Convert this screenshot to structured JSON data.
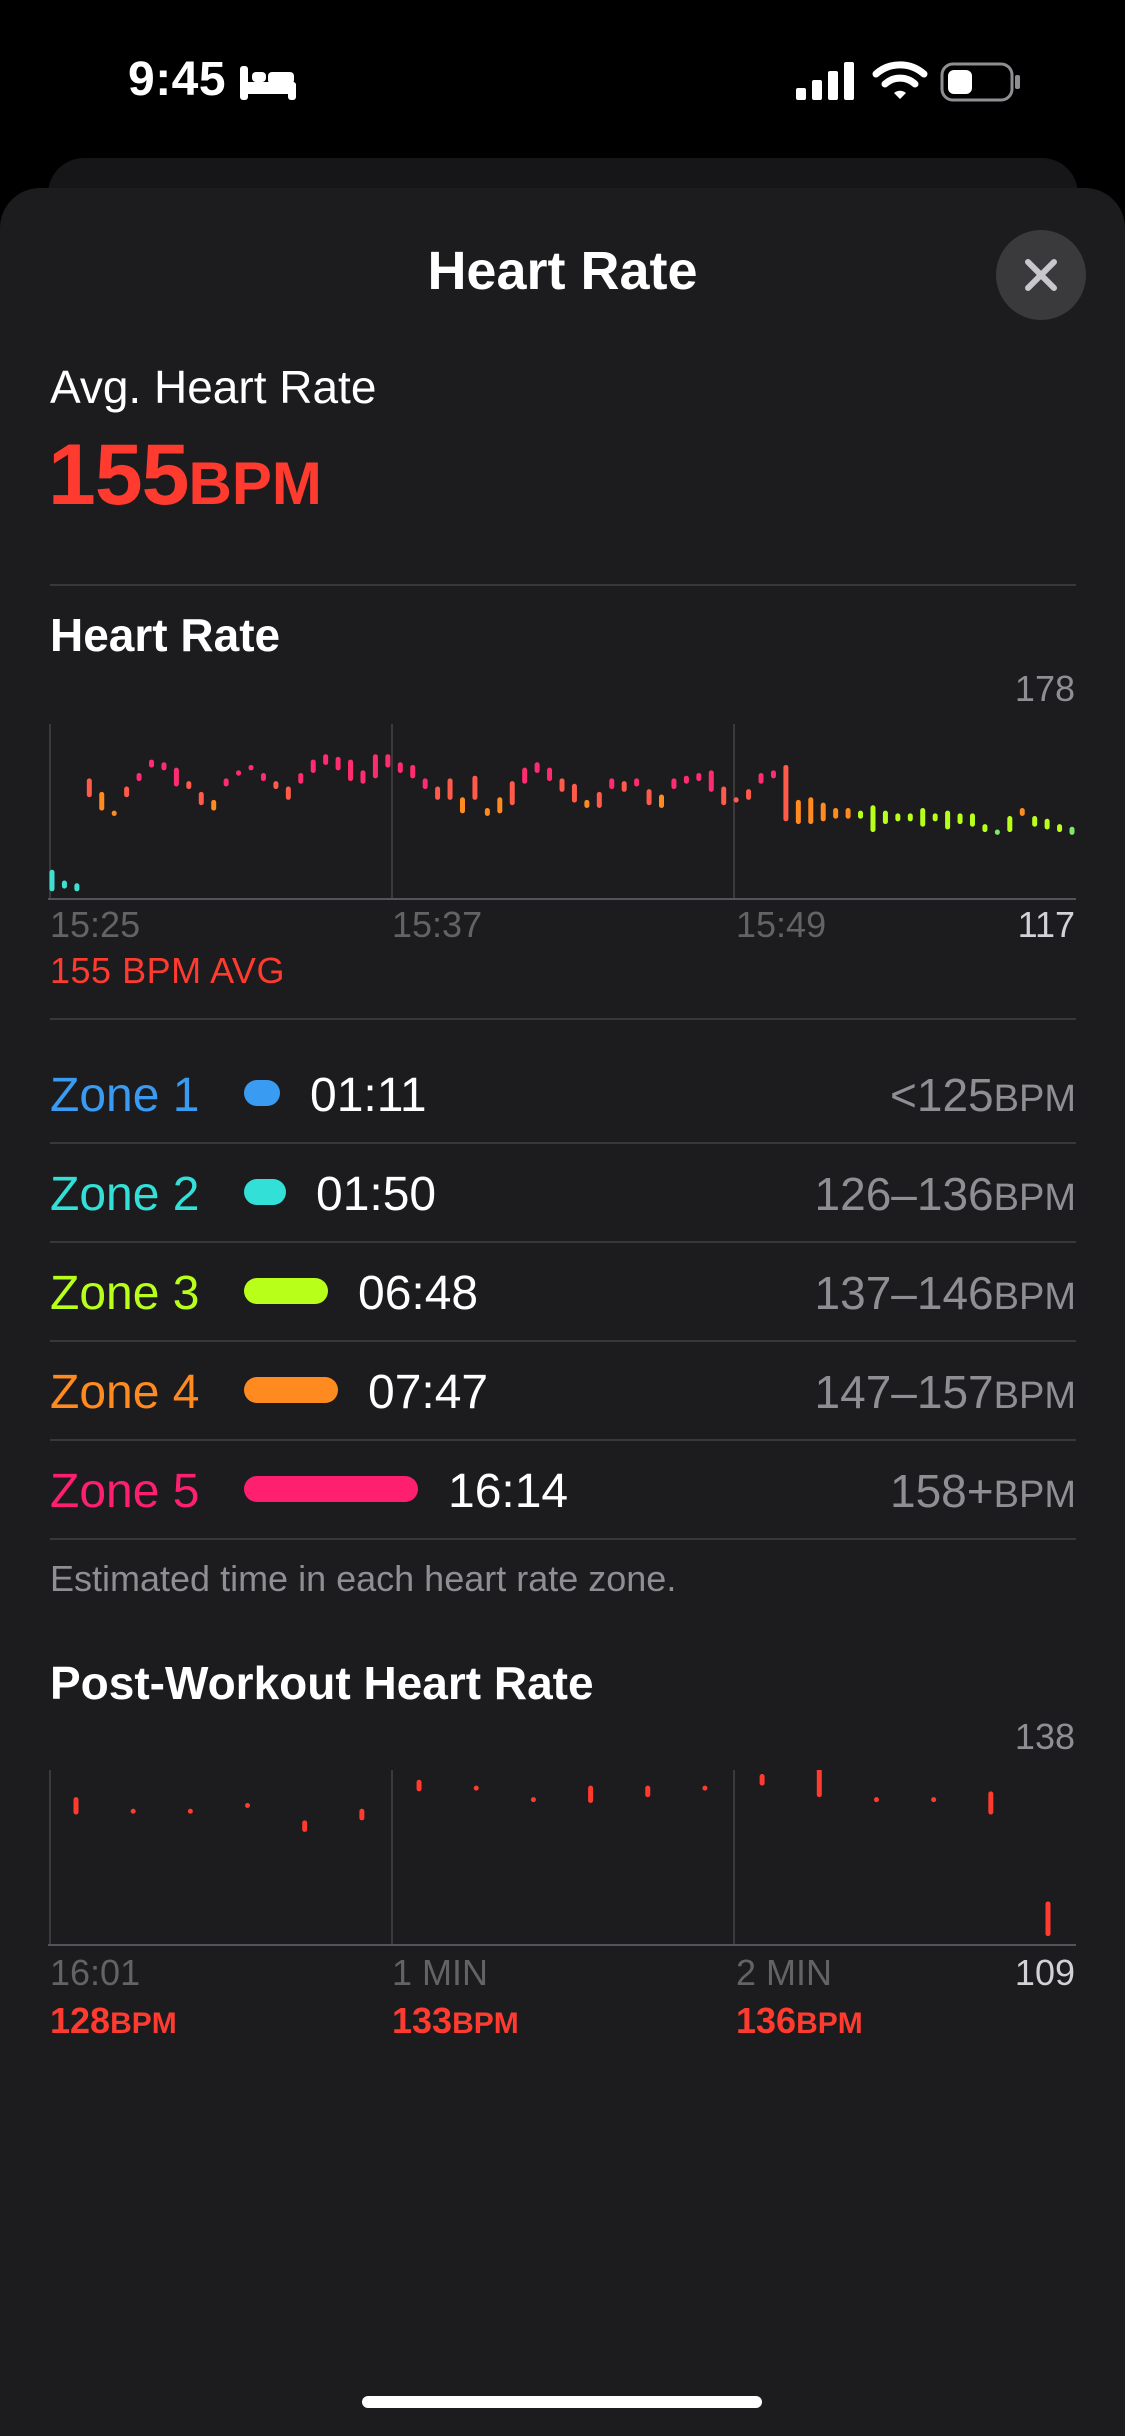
{
  "status_bar": {
    "time": "9:45",
    "icons": [
      "bed-icon",
      "cellular-signal-icon",
      "wifi-icon",
      "battery-icon"
    ]
  },
  "sheet": {
    "title": "Heart Rate",
    "close_icon": "close-icon"
  },
  "summary": {
    "label": "Avg. Heart Rate",
    "value": "155",
    "unit": "BPM",
    "color": "#ff3b30"
  },
  "heart_rate_chart": {
    "title": "Heart Rate",
    "y_max_label": "178",
    "y_min_label": "117",
    "x_labels": [
      "15:25",
      "15:37",
      "15:49"
    ],
    "avg_caption": "155 BPM AVG"
  },
  "zones": [
    {
      "name": "Zone 1",
      "time": "01:11",
      "range": "<125",
      "unit": "BPM",
      "color": "#3a9bf3"
    },
    {
      "name": "Zone 2",
      "time": "01:50",
      "range": "126–136",
      "unit": "BPM",
      "color": "#33e0d8"
    },
    {
      "name": "Zone 3",
      "time": "06:48",
      "range": "137–146",
      "unit": "BPM",
      "color": "#b8ff1a"
    },
    {
      "name": "Zone 4",
      "time": "07:47",
      "range": "147–157",
      "unit": "BPM",
      "color": "#ff8a1f"
    },
    {
      "name": "Zone 5",
      "time": "16:14",
      "range": "158+",
      "unit": "BPM",
      "color": "#ff1f6f"
    }
  ],
  "zone_note": "Estimated time in each heart rate zone.",
  "post_workout": {
    "title": "Post-Workout Heart Rate",
    "y_max_label": "138",
    "y_min_label": "109",
    "x_labels": [
      "16:01",
      "1 MIN",
      "2 MIN"
    ],
    "values": [
      {
        "value": "128",
        "unit": "BPM"
      },
      {
        "value": "133",
        "unit": "BPM"
      },
      {
        "value": "136",
        "unit": "BPM"
      }
    ]
  },
  "chart_data": [
    {
      "type": "range-bar",
      "title": "Heart Rate",
      "ylim": [
        117,
        178
      ],
      "x_start": "15:25",
      "x_ticks": [
        "15:25",
        "15:37",
        "15:49"
      ],
      "avg_bpm": 155,
      "series": [
        {
          "range": [
            118,
            126
          ]
        },
        {
          "range": [
            119,
            122
          ]
        },
        {
          "range": [
            118,
            121
          ]
        },
        {
          "range": [
            153,
            160
          ]
        },
        {
          "range": [
            148,
            155
          ]
        },
        {
          "range": [
            146,
            148
          ]
        },
        {
          "range": [
            153,
            157
          ]
        },
        {
          "range": [
            159,
            162
          ]
        },
        {
          "range": [
            164,
            167
          ]
        },
        {
          "range": [
            163,
            166
          ]
        },
        {
          "range": [
            157,
            164
          ]
        },
        {
          "range": [
            156,
            159
          ]
        },
        {
          "range": [
            150,
            155
          ]
        },
        {
          "range": [
            148,
            152
          ]
        },
        {
          "range": [
            157,
            160
          ]
        },
        {
          "range": [
            161,
            163
          ]
        },
        {
          "range": [
            163,
            165
          ]
        },
        {
          "range": [
            159,
            162
          ]
        },
        {
          "range": [
            156,
            159
          ]
        },
        {
          "range": [
            152,
            157
          ]
        },
        {
          "range": [
            158,
            162
          ]
        },
        {
          "range": [
            162,
            167
          ]
        },
        {
          "range": [
            165,
            169
          ]
        },
        {
          "range": [
            163,
            168
          ]
        },
        {
          "range": [
            159,
            167
          ]
        },
        {
          "range": [
            158,
            163
          ]
        },
        {
          "range": [
            160,
            169
          ]
        },
        {
          "range": [
            164,
            169
          ]
        },
        {
          "range": [
            162,
            166
          ]
        },
        {
          "range": [
            160,
            165
          ]
        },
        {
          "range": [
            156,
            160
          ]
        },
        {
          "range": [
            152,
            157
          ]
        },
        {
          "range": [
            152,
            160
          ]
        },
        {
          "range": [
            147,
            153
          ]
        },
        {
          "range": [
            152,
            161
          ]
        },
        {
          "range": [
            146,
            149
          ]
        },
        {
          "range": [
            147,
            153
          ]
        },
        {
          "range": [
            150,
            159
          ]
        },
        {
          "range": [
            158,
            164
          ]
        },
        {
          "range": [
            162,
            166
          ]
        },
        {
          "range": [
            159,
            164
          ]
        },
        {
          "range": [
            155,
            160
          ]
        },
        {
          "range": [
            151,
            158
          ]
        },
        {
          "range": [
            149,
            152
          ]
        },
        {
          "range": [
            149,
            155
          ]
        },
        {
          "range": [
            156,
            160
          ]
        },
        {
          "range": [
            155,
            159
          ]
        },
        {
          "range": [
            157,
            160
          ]
        },
        {
          "range": [
            150,
            156
          ]
        },
        {
          "range": [
            149,
            154
          ]
        },
        {
          "range": [
            156,
            160
          ]
        },
        {
          "range": [
            158,
            161
          ]
        },
        {
          "range": [
            159,
            162
          ]
        },
        {
          "range": [
            155,
            163
          ]
        },
        {
          "range": [
            150,
            157
          ]
        },
        {
          "range": [
            151,
            153
          ]
        },
        {
          "range": [
            152,
            156
          ]
        },
        {
          "range": [
            158,
            162
          ]
        },
        {
          "range": [
            160,
            163
          ]
        },
        {
          "range": [
            144,
            165
          ]
        },
        {
          "range": [
            143,
            152
          ]
        },
        {
          "range": [
            143,
            153
          ]
        },
        {
          "range": [
            144,
            151
          ]
        },
        {
          "range": [
            145,
            149
          ]
        },
        {
          "range": [
            145,
            149
          ]
        },
        {
          "range": [
            145,
            148
          ]
        },
        {
          "range": [
            140,
            150
          ]
        },
        {
          "range": [
            143,
            148
          ]
        },
        {
          "range": [
            144,
            147
          ]
        },
        {
          "range": [
            144,
            147
          ]
        },
        {
          "range": [
            142,
            149
          ]
        },
        {
          "range": [
            144,
            147
          ]
        },
        {
          "range": [
            141,
            148
          ]
        },
        {
          "range": [
            143,
            147
          ]
        },
        {
          "range": [
            142,
            147
          ]
        },
        {
          "range": [
            140,
            143
          ]
        },
        {
          "range": [
            139,
            141
          ]
        },
        {
          "range": [
            140,
            146
          ]
        },
        {
          "range": [
            146,
            149
          ]
        },
        {
          "range": [
            142,
            146
          ]
        },
        {
          "range": [
            141,
            145
          ]
        },
        {
          "range": [
            140,
            143
          ]
        },
        {
          "range": [
            139,
            142
          ]
        }
      ],
      "colors": {
        "low": "#40e0d0",
        "mid": "#b8ff1a",
        "high_mid": "#ff8a1f",
        "high": "#ff2d6f"
      }
    },
    {
      "type": "range-bar",
      "title": "Post-Workout Heart Rate",
      "ylim": [
        109,
        138
      ],
      "x_ticks": [
        "16:01",
        "1 MIN",
        "2 MIN"
      ],
      "series": [
        {
          "range": [
            131,
            134
          ]
        },
        {
          "range": [
            132,
            132
          ]
        },
        {
          "range": [
            132,
            132
          ]
        },
        {
          "range": [
            133,
            133
          ]
        },
        {
          "range": [
            128,
            130
          ]
        },
        {
          "range": [
            130,
            132
          ]
        },
        {
          "range": [
            135,
            137
          ]
        },
        {
          "range": [
            136,
            136
          ]
        },
        {
          "range": [
            134,
            134
          ]
        },
        {
          "range": [
            133,
            136
          ]
        },
        {
          "range": [
            134,
            136
          ]
        },
        {
          "range": [
            136,
            136
          ]
        },
        {
          "range": [
            136,
            138
          ]
        },
        {
          "range": [
            134,
            139
          ]
        },
        {
          "range": [
            134,
            134
          ]
        },
        {
          "range": [
            134,
            134
          ]
        },
        {
          "range": [
            131,
            135
          ]
        },
        {
          "range": [
            110,
            116
          ]
        }
      ],
      "color": "#ff3b30"
    }
  ]
}
